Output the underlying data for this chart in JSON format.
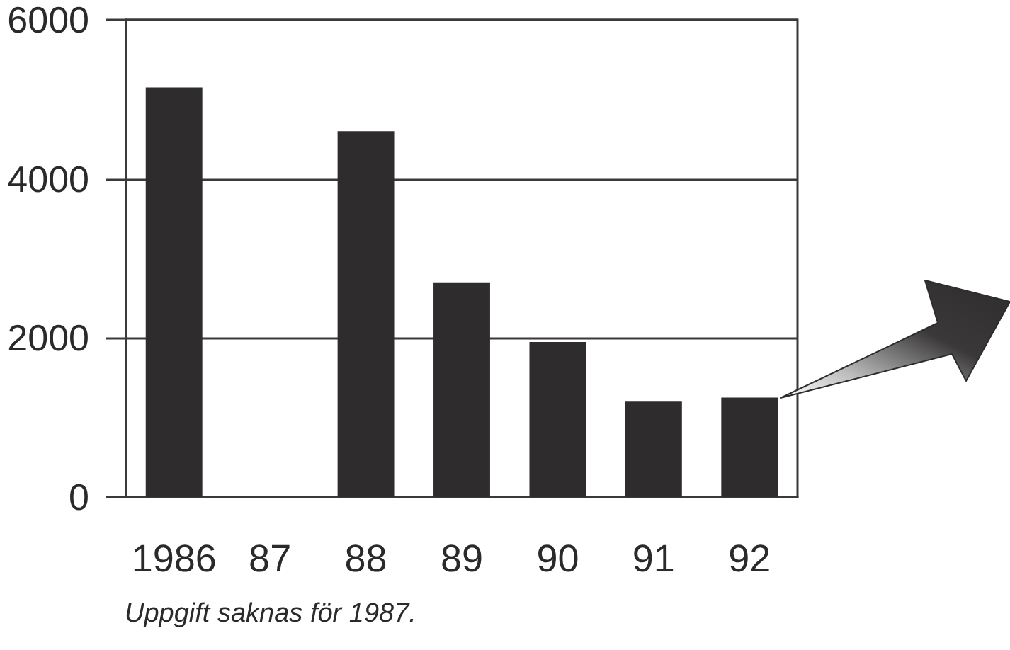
{
  "chart_data": {
    "type": "bar",
    "categories": [
      "1986",
      "87",
      "88",
      "89",
      "90",
      "91",
      "92"
    ],
    "values": [
      5150,
      null,
      4600,
      2700,
      1950,
      1200,
      1250
    ],
    "color": "#2e2c2c",
    "ylim": [
      0,
      6000
    ],
    "yticks": [
      0,
      2000,
      4000,
      6000
    ],
    "grid": "y",
    "annotations": [
      "Uppgift saknas för 1987."
    ]
  }
}
